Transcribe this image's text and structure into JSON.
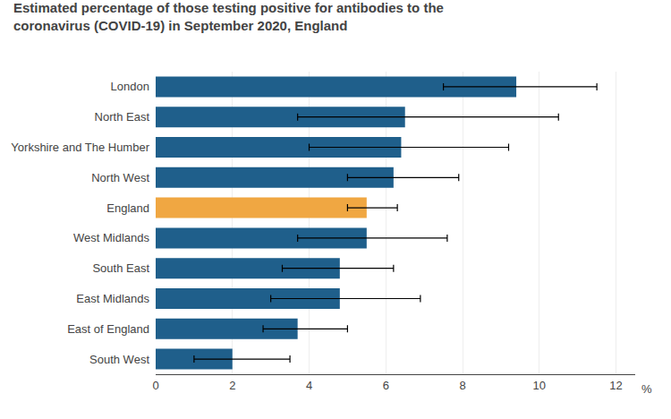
{
  "chart_data": {
    "type": "bar",
    "orientation": "horizontal",
    "title": "Estimated percentage of those testing positive for antibodies to the",
    "subtitle": "coronavirus (COVID-19) in September 2020, England",
    "xlabel": "%",
    "categories": [
      "South West",
      "East of England",
      "East Midlands",
      "South East",
      "West Midlands",
      "England",
      "North West",
      "Yorkshire and The Humber",
      "North East",
      "London"
    ],
    "values": [
      2.0,
      3.7,
      4.8,
      4.8,
      5.5,
      5.5,
      6.2,
      6.4,
      6.5,
      9.4
    ],
    "error_low": [
      1.0,
      2.8,
      3.0,
      3.3,
      3.7,
      5.0,
      5.0,
      4.0,
      3.7,
      7.5
    ],
    "error_high": [
      3.5,
      5.0,
      6.9,
      6.2,
      7.6,
      6.3,
      7.9,
      9.2,
      10.5,
      11.5
    ],
    "colors": [
      "#1F5F8B",
      "#1F5F8B",
      "#1F5F8B",
      "#1F5F8B",
      "#1F5F8B",
      "#F0A742",
      "#1F5F8B",
      "#1F5F8B",
      "#1F5F8B",
      "#1F5F8B"
    ],
    "xlim": [
      0,
      12.5
    ],
    "xticks": [
      0,
      2,
      4,
      6,
      8,
      10,
      12
    ],
    "grid": true
  }
}
